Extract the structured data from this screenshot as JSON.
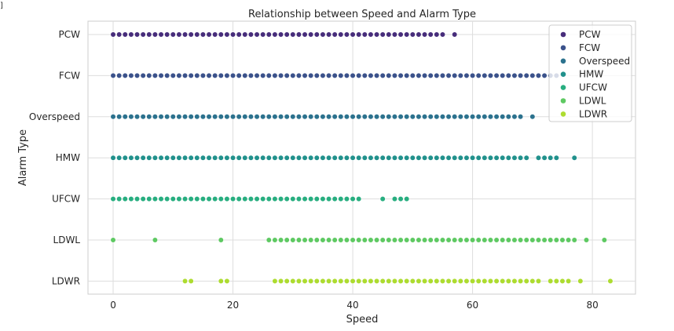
{
  "corner_mark": "]",
  "chart_data": {
    "type": "scatter",
    "title": "Relationship between Speed and Alarm Type",
    "xlabel": "Speed",
    "ylabel": "Alarm Type",
    "xlim": [
      -4.2,
      87.2
    ],
    "x_ticks": [
      0,
      20,
      40,
      60,
      80
    ],
    "categories": [
      "PCW",
      "FCW",
      "Overspeed",
      "HMW",
      "UFCW",
      "LDWL",
      "LDWR"
    ],
    "grid": true,
    "legend_position": "top-right",
    "series": [
      {
        "name": "PCW",
        "color": "#472d7b",
        "x": [
          0,
          1,
          2,
          3,
          4,
          5,
          6,
          7,
          8,
          9,
          10,
          11,
          12,
          13,
          14,
          15,
          16,
          17,
          18,
          19,
          20,
          21,
          22,
          23,
          24,
          25,
          26,
          27,
          28,
          29,
          30,
          31,
          32,
          33,
          34,
          35,
          36,
          37,
          38,
          39,
          40,
          41,
          42,
          43,
          44,
          45,
          46,
          47,
          48,
          49,
          50,
          51,
          52,
          53,
          54,
          55,
          57
        ]
      },
      {
        "name": "FCW",
        "color": "#3b528b",
        "x": [
          0,
          1,
          2,
          3,
          4,
          5,
          6,
          7,
          8,
          9,
          10,
          11,
          12,
          13,
          14,
          15,
          16,
          17,
          18,
          19,
          20,
          21,
          22,
          23,
          24,
          25,
          26,
          27,
          28,
          29,
          30,
          31,
          32,
          33,
          34,
          35,
          36,
          37,
          38,
          39,
          40,
          41,
          42,
          43,
          44,
          45,
          46,
          47,
          48,
          49,
          50,
          51,
          52,
          53,
          54,
          55,
          56,
          57,
          58,
          59,
          60,
          61,
          62,
          63,
          64,
          65,
          66,
          67,
          68,
          69,
          70,
          71,
          72,
          73,
          74
        ]
      },
      {
        "name": "Overspeed",
        "color": "#2c728e",
        "x": [
          0,
          1,
          2,
          3,
          4,
          5,
          6,
          7,
          8,
          9,
          10,
          11,
          12,
          13,
          14,
          15,
          16,
          17,
          18,
          19,
          20,
          21,
          22,
          23,
          24,
          25,
          26,
          27,
          28,
          29,
          30,
          31,
          32,
          33,
          34,
          35,
          36,
          37,
          38,
          39,
          40,
          41,
          42,
          43,
          44,
          45,
          46,
          47,
          48,
          49,
          50,
          51,
          52,
          53,
          54,
          55,
          56,
          57,
          58,
          59,
          60,
          61,
          62,
          63,
          64,
          65,
          66,
          67,
          68,
          70
        ]
      },
      {
        "name": "HMW",
        "color": "#21918c",
        "x": [
          0,
          1,
          2,
          3,
          4,
          5,
          6,
          7,
          8,
          9,
          10,
          11,
          12,
          13,
          14,
          15,
          16,
          17,
          18,
          19,
          20,
          21,
          22,
          23,
          24,
          25,
          26,
          27,
          28,
          29,
          30,
          31,
          32,
          33,
          34,
          35,
          36,
          37,
          38,
          39,
          40,
          41,
          42,
          43,
          44,
          45,
          46,
          47,
          48,
          49,
          50,
          51,
          52,
          53,
          54,
          55,
          56,
          57,
          58,
          59,
          60,
          61,
          62,
          63,
          64,
          65,
          66,
          67,
          68,
          69,
          71,
          72,
          73,
          74,
          77
        ]
      },
      {
        "name": "UFCW",
        "color": "#28ae80",
        "x": [
          0,
          1,
          2,
          3,
          4,
          5,
          6,
          7,
          8,
          9,
          10,
          11,
          12,
          13,
          14,
          15,
          16,
          17,
          18,
          19,
          20,
          21,
          22,
          23,
          24,
          25,
          26,
          27,
          28,
          29,
          30,
          31,
          32,
          33,
          34,
          35,
          36,
          37,
          38,
          39,
          40,
          41,
          45,
          47,
          48,
          49
        ]
      },
      {
        "name": "LDWL",
        "color": "#5ec962",
        "x": [
          0,
          7,
          18,
          26,
          27,
          28,
          29,
          30,
          31,
          32,
          33,
          34,
          35,
          36,
          37,
          38,
          39,
          40,
          41,
          42,
          43,
          44,
          45,
          46,
          47,
          48,
          49,
          50,
          51,
          52,
          53,
          54,
          55,
          56,
          57,
          58,
          59,
          60,
          61,
          62,
          63,
          64,
          65,
          66,
          67,
          68,
          69,
          70,
          71,
          72,
          73,
          74,
          75,
          76,
          77,
          79,
          82
        ]
      },
      {
        "name": "LDWR",
        "color": "#addc30",
        "x": [
          12,
          13,
          18,
          19,
          27,
          28,
          29,
          30,
          31,
          32,
          33,
          34,
          35,
          36,
          37,
          38,
          39,
          40,
          41,
          42,
          43,
          44,
          45,
          46,
          47,
          48,
          49,
          50,
          51,
          52,
          53,
          54,
          55,
          56,
          57,
          58,
          59,
          60,
          61,
          62,
          63,
          64,
          65,
          66,
          67,
          68,
          69,
          70,
          71,
          73,
          74,
          75,
          76,
          78,
          83
        ]
      }
    ]
  }
}
